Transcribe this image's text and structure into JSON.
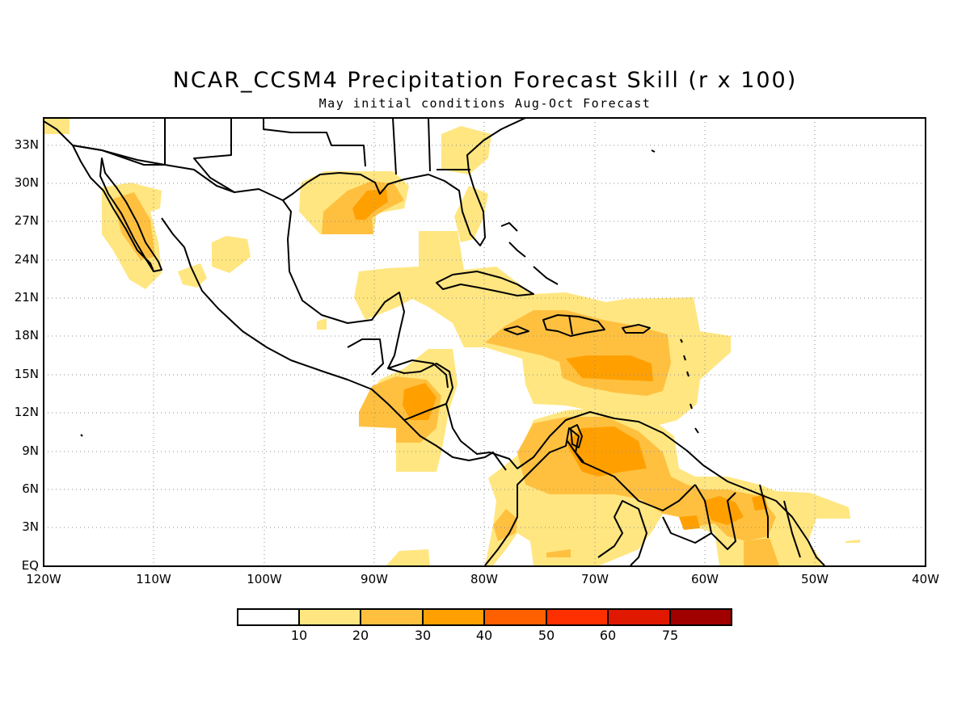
{
  "title": "NCAR_CCSM4 Precipitation Forecast Skill (r x 100)",
  "subtitle": "May initial conditions  Aug-Oct Forecast",
  "lat_labels": [
    "33N",
    "30N",
    "27N",
    "24N",
    "21N",
    "18N",
    "15N",
    "12N",
    "9N",
    "6N",
    "3N",
    "EQ"
  ],
  "lon_labels": [
    "120W",
    "110W",
    "100W",
    "90W",
    "80W",
    "70W",
    "60W",
    "50W",
    "40W"
  ],
  "colorbar": {
    "labels": [
      "10",
      "20",
      "30",
      "40",
      "50",
      "60",
      "75"
    ],
    "colors": [
      "#ffffff",
      "#ffe680",
      "#ffc040",
      "#ffa000",
      "#ff6000",
      "#ff3000",
      "#e01800",
      "#a00000"
    ]
  },
  "map_extent": {
    "lon": [
      -120,
      -40
    ],
    "lat": [
      0,
      35
    ]
  }
}
